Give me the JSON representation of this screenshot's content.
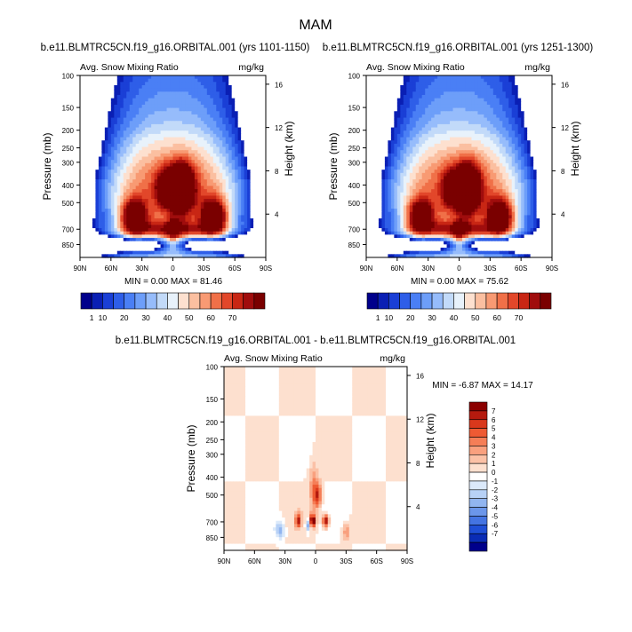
{
  "main_title": "MAM",
  "chart_data": [
    {
      "type": "heatmap",
      "title": "b.e11.BLMTRC5CN.f19_g16.ORBITAL.001 (yrs 1101-1150)",
      "left_string": "Avg. Snow Mixing Ratio",
      "right_string": "mg/kg",
      "xlabel": "",
      "ylabel": "Pressure (mb)",
      "y2label": "Height (km)",
      "x_ticks": [
        "90N",
        "60N",
        "30N",
        "0",
        "30S",
        "60S",
        "90S"
      ],
      "y_ticks": [
        100,
        150,
        200,
        250,
        300,
        400,
        500,
        700,
        850
      ],
      "y2_ticks": [
        16,
        12,
        8,
        4
      ],
      "xlim": [
        90,
        -90
      ],
      "ylim": [
        1000,
        100
      ],
      "y_scale": "log",
      "min_max_text": "MIN =   0.00  MAX =  81.46",
      "min": 0.0,
      "max": 81.46,
      "colorbar": {
        "orientation": "horizontal",
        "labels": [
          "1",
          "10",
          "20",
          "30",
          "40",
          "50",
          "60",
          "70"
        ],
        "colors": [
          "#00008b",
          "#0a1fb4",
          "#1a3fd6",
          "#2e5ee8",
          "#4a7ff5",
          "#6d9ef9",
          "#96bcfb",
          "#c2daf9",
          "#e8f2fb",
          "#fde0cf",
          "#fbbfa0",
          "#f89a73",
          "#f07048",
          "#e2472a",
          "#c82614",
          "#a00d0d",
          "#7a0000"
        ]
      },
      "shape": {
        "core_lat": -8,
        "core_value": 80,
        "upper_core_value": 62,
        "side_maxima": [
          {
            "lat": 38,
            "value": 58
          },
          {
            "lat": -40,
            "value": 64
          }
        ],
        "lowlevel_band_value": 60,
        "outer_edge_value": 6
      }
    },
    {
      "type": "heatmap",
      "title": "b.e11.BLMTRC5CN.f19_g16.ORBITAL.001 (yrs 1251-1300)",
      "left_string": "Avg. Snow Mixing Ratio",
      "right_string": "mg/kg",
      "xlabel": "",
      "ylabel": "Pressure (mb)",
      "y2label": "Height (km)",
      "x_ticks": [
        "90N",
        "60N",
        "30N",
        "0",
        "30S",
        "60S",
        "90S"
      ],
      "y_ticks": [
        100,
        150,
        200,
        250,
        300,
        400,
        500,
        700,
        850
      ],
      "y2_ticks": [
        16,
        12,
        8,
        4
      ],
      "xlim": [
        90,
        -90
      ],
      "ylim": [
        1000,
        100
      ],
      "y_scale": "log",
      "min_max_text": "MIN =   0.00  MAX =  75.62",
      "min": 0.0,
      "max": 75.62,
      "colorbar": {
        "orientation": "horizontal",
        "labels": [
          "1",
          "10",
          "20",
          "30",
          "40",
          "50",
          "60",
          "70"
        ],
        "colors": [
          "#00008b",
          "#0a1fb4",
          "#1a3fd6",
          "#2e5ee8",
          "#4a7ff5",
          "#6d9ef9",
          "#96bcfb",
          "#c2daf9",
          "#e8f2fb",
          "#fde0cf",
          "#fbbfa0",
          "#f89a73",
          "#f07048",
          "#e2472a",
          "#c82614",
          "#a00d0d",
          "#7a0000"
        ]
      },
      "shape": {
        "core_lat": -8,
        "core_value": 74,
        "upper_core_value": 58,
        "side_maxima": [
          {
            "lat": 38,
            "value": 56
          },
          {
            "lat": -40,
            "value": 62
          }
        ],
        "lowlevel_band_value": 56,
        "outer_edge_value": 6
      }
    },
    {
      "type": "heatmap",
      "title": "b.e11.BLMTRC5CN.f19_g16.ORBITAL.001 - b.e11.BLMTRC5CN.f19_g16.ORBITAL.001",
      "left_string": "Avg. Snow Mixing Ratio",
      "right_string": "mg/kg",
      "xlabel": "",
      "ylabel": "Pressure (mb)",
      "y2label": "Height (km)",
      "x_ticks": [
        "90N",
        "60N",
        "30N",
        "0",
        "30S",
        "60S",
        "90S"
      ],
      "y_ticks": [
        100,
        150,
        200,
        250,
        300,
        400,
        500,
        700,
        850
      ],
      "y2_ticks": [
        16,
        12,
        8,
        4
      ],
      "xlim": [
        90,
        -90
      ],
      "ylim": [
        1000,
        100
      ],
      "y_scale": "log",
      "min_max_text": "MIN =  -6.87  MAX =  14.17",
      "min": -6.87,
      "max": 14.17,
      "colorbar": {
        "orientation": "vertical",
        "labels": [
          "7",
          "6",
          "5",
          "4",
          "3",
          "2",
          "1",
          "0",
          "-1",
          "-2",
          "-3",
          "-4",
          "-5",
          "-6",
          "-7"
        ],
        "colors": [
          "#8b0000",
          "#b51a0e",
          "#d9381c",
          "#ee5a33",
          "#f57e57",
          "#f9a07e",
          "#fbc1a6",
          "#fde0cf",
          "#ffffff",
          "#dbe9fa",
          "#b7d1f6",
          "#91b5f0",
          "#6b96ea",
          "#4474e2",
          "#1f4fd6",
          "#0a2cb5",
          "#00008b"
        ]
      }
    }
  ]
}
